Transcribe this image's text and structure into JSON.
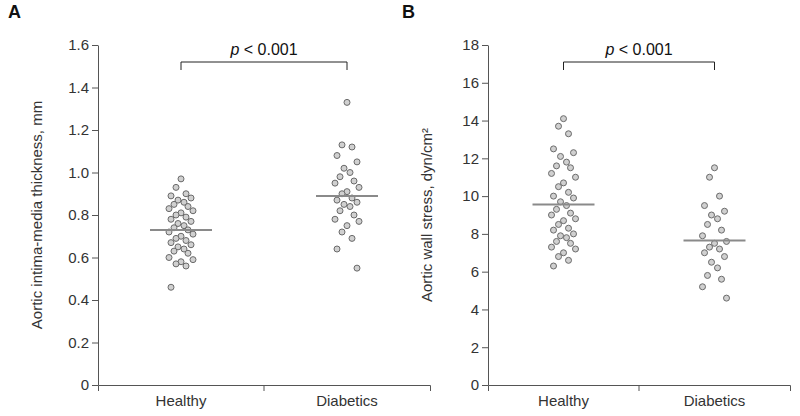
{
  "chart_data": [
    {
      "type": "strip",
      "title": "A",
      "y_label": "Aortic intima-media thickness, mm",
      "categories": [
        "Healthy",
        "Diabetics"
      ],
      "values": [
        [
          0.97,
          0.93,
          0.9,
          0.89,
          0.88,
          0.87,
          0.86,
          0.85,
          0.84,
          0.83,
          0.82,
          0.81,
          0.8,
          0.79,
          0.78,
          0.77,
          0.76,
          0.75,
          0.74,
          0.73,
          0.72,
          0.71,
          0.7,
          0.69,
          0.68,
          0.67,
          0.66,
          0.65,
          0.64,
          0.63,
          0.62,
          0.6,
          0.59,
          0.58,
          0.57,
          0.56,
          0.46
        ],
        [
          1.33,
          1.13,
          1.12,
          1.08,
          1.05,
          1.02,
          1.0,
          0.98,
          0.96,
          0.95,
          0.93,
          0.91,
          0.9,
          0.88,
          0.87,
          0.86,
          0.85,
          0.84,
          0.82,
          0.8,
          0.78,
          0.77,
          0.75,
          0.72,
          0.69,
          0.64,
          0.55
        ]
      ],
      "means": [
        0.73,
        0.89
      ],
      "annotations": [
        "p < 0.001"
      ],
      "ylim": [
        0,
        1.6
      ],
      "yticks": [
        0,
        0.2,
        0.4,
        0.6,
        0.8,
        {
          "value": 1,
          "label": "1.0"
        },
        1.2,
        1.4,
        1.6
      ]
    },
    {
      "type": "strip",
      "title": "B",
      "y_label": "Aortic wall stress, dyn/cm²",
      "categories": [
        "Healthy",
        "Diabetics"
      ],
      "values": [
        [
          14.1,
          13.7,
          13.3,
          12.5,
          12.3,
          12.1,
          11.8,
          11.6,
          11.5,
          11.2,
          11.0,
          10.7,
          10.5,
          10.2,
          10.0,
          9.9,
          9.7,
          9.5,
          9.3,
          9.1,
          9.0,
          8.8,
          8.7,
          8.5,
          8.3,
          8.2,
          8.0,
          7.9,
          7.8,
          7.6,
          7.5,
          7.3,
          7.2,
          7.0,
          6.8,
          6.6,
          6.3
        ],
        [
          11.5,
          11.0,
          10.0,
          9.5,
          9.2,
          9.0,
          8.8,
          8.5,
          8.2,
          7.9,
          7.6,
          7.5,
          7.3,
          7.2,
          7.0,
          6.8,
          6.5,
          6.2,
          5.8,
          5.6,
          5.2,
          4.6
        ]
      ],
      "means": [
        9.55,
        7.65
      ],
      "annotations": [
        "p < 0.001"
      ],
      "ylim": [
        0,
        18
      ],
      "yticks": [
        0,
        2,
        4,
        6,
        8,
        10,
        12,
        14,
        16,
        18
      ]
    }
  ]
}
